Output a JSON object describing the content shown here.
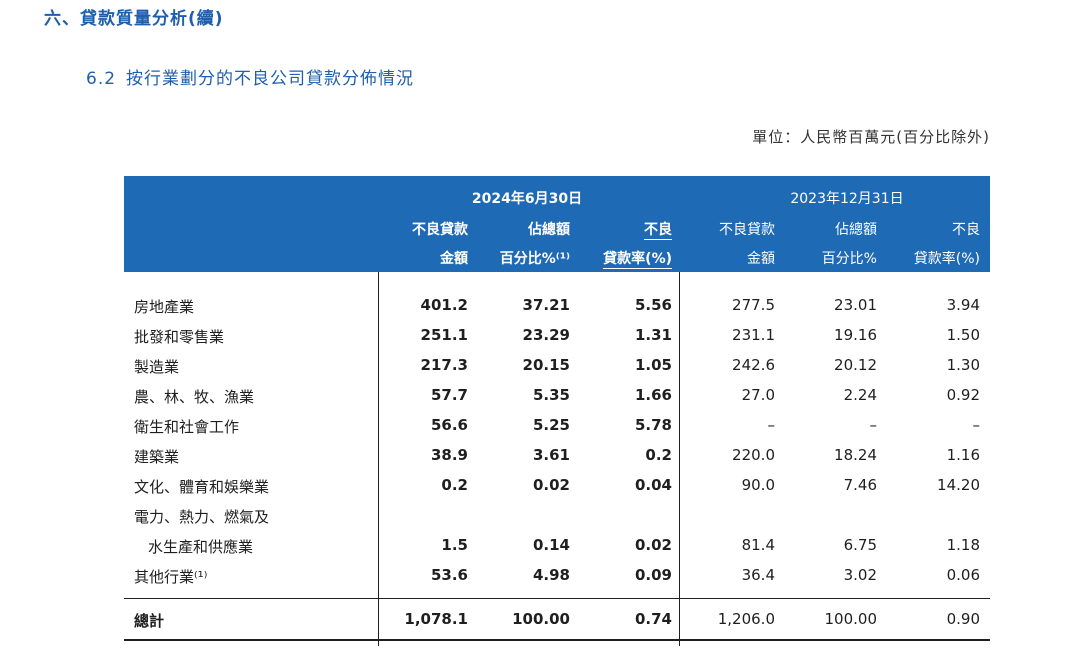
{
  "section_title": "六、貸款質量分析(續)",
  "sub_title": {
    "num": "6.2",
    "text": "按行業劃分的不良公司貸款分佈情況"
  },
  "unit": "單位：人民幣百萬元(百分比除外)",
  "header": {
    "date1": "2024年6月30日",
    "date2": "2023年12月31日",
    "cols": [
      {
        "l1": "不良貸款",
        "l2": "金額"
      },
      {
        "l1": "佔總額",
        "l2": "百分比%⁽¹⁾"
      },
      {
        "l1": "不良",
        "l2": "貸款率(%)"
      },
      {
        "l1": "不良貸款",
        "l2": "金額"
      },
      {
        "l1": "佔總額",
        "l2": "百分比%"
      },
      {
        "l1": "不良",
        "l2": "貸款率(%)"
      }
    ]
  },
  "rows": [
    {
      "label": "房地產業",
      "v": [
        "401.2",
        "37.21",
        "5.56",
        "277.5",
        "23.01",
        "3.94"
      ]
    },
    {
      "label": "批發和零售業",
      "v": [
        "251.1",
        "23.29",
        "1.31",
        "231.1",
        "19.16",
        "1.50"
      ]
    },
    {
      "label": "製造業",
      "v": [
        "217.3",
        "20.15",
        "1.05",
        "242.6",
        "20.12",
        "1.30"
      ]
    },
    {
      "label": "農、林、牧、漁業",
      "v": [
        "57.7",
        "5.35",
        "1.66",
        "27.0",
        "2.24",
        "0.92"
      ]
    },
    {
      "label": "衛生和社會工作",
      "v": [
        "56.6",
        "5.25",
        "5.78",
        "–",
        "–",
        "–"
      ]
    },
    {
      "label": "建築業",
      "v": [
        "38.9",
        "3.61",
        "0.2",
        "220.0",
        "18.24",
        "1.16"
      ]
    },
    {
      "label": "文化、體育和娛樂業",
      "v": [
        "0.2",
        "0.02",
        "0.04",
        "90.0",
        "7.46",
        "14.20"
      ]
    },
    {
      "label": "電力、熱力、燃氣及",
      "v": [
        "",
        "",
        "",
        "",
        "",
        ""
      ]
    },
    {
      "label": "水生產和供應業",
      "indent": true,
      "v": [
        "1.5",
        "0.14",
        "0.02",
        "81.4",
        "6.75",
        "1.18"
      ]
    },
    {
      "label": "其他行業⁽¹⁾",
      "v": [
        "53.6",
        "4.98",
        "0.09",
        "36.4",
        "3.02",
        "0.06"
      ]
    }
  ],
  "total": {
    "label": "總計",
    "v": [
      "1,078.1",
      "100.00",
      "0.74",
      "1,206.0",
      "100.00",
      "0.90"
    ]
  }
}
